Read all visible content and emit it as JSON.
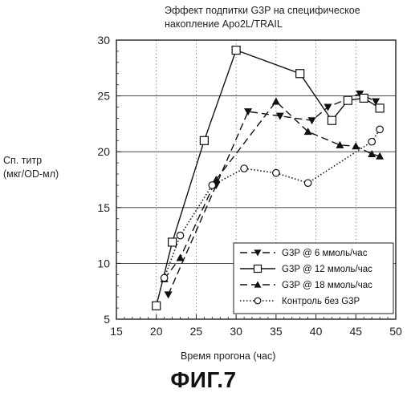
{
  "chart_data": {
    "type": "line",
    "title_lines": [
      "Эффект подпитки G3P на специфическое",
      "накопление Apo2L/TRAIL"
    ],
    "ylabel_lines": [
      "Сп. титр",
      "(мкг/OD-мл)"
    ],
    "xlabel": "Время прогона (час)",
    "xlim": [
      15,
      50
    ],
    "ylim": [
      5,
      30
    ],
    "xticks": [
      "15",
      "20",
      "25",
      "30",
      "35",
      "40",
      "45",
      "50"
    ],
    "yticks": [
      "5",
      "10",
      "15",
      "20",
      "25",
      "30"
    ],
    "grid": true,
    "legend_position": "bottom-right",
    "series": [
      {
        "name": "G3P @ 6 ммоль/час",
        "line": "dashed",
        "marker": "triangle-down",
        "x": [
          21.5,
          27.5,
          31.5,
          35.5,
          39.5,
          41.5,
          45.5,
          47.5
        ],
        "y": [
          7.2,
          17.0,
          23.6,
          23.2,
          22.8,
          24.0,
          25.2,
          24.5
        ]
      },
      {
        "name": "G3P @ 12 ммоль/час",
        "line": "solid",
        "marker": "square-open",
        "x": [
          20.0,
          22.0,
          26.0,
          30.0,
          38.0,
          42.0,
          44.0,
          46.0,
          48.0
        ],
        "y": [
          6.2,
          11.9,
          21.0,
          29.1,
          27.0,
          22.8,
          24.6,
          24.8,
          23.9
        ]
      },
      {
        "name": "G3P @ 18 ммоль/час",
        "line": "dashed",
        "marker": "triangle-up",
        "x": [
          21.0,
          23.0,
          27.5,
          35.0,
          39.0,
          43.0,
          45.0,
          47.0,
          48.0
        ],
        "y": [
          8.6,
          10.5,
          17.5,
          24.5,
          21.8,
          20.6,
          20.5,
          19.8,
          19.6
        ]
      },
      {
        "name": "Контроль без G3P",
        "line": "dotted",
        "marker": "circle-open",
        "x": [
          21.0,
          23.0,
          27.0,
          31.0,
          35.0,
          39.0,
          47.0,
          48.0
        ],
        "y": [
          8.7,
          12.5,
          17.0,
          18.5,
          18.1,
          17.2,
          20.9,
          22.0
        ]
      }
    ]
  },
  "figure_label": "ФИГ.7"
}
